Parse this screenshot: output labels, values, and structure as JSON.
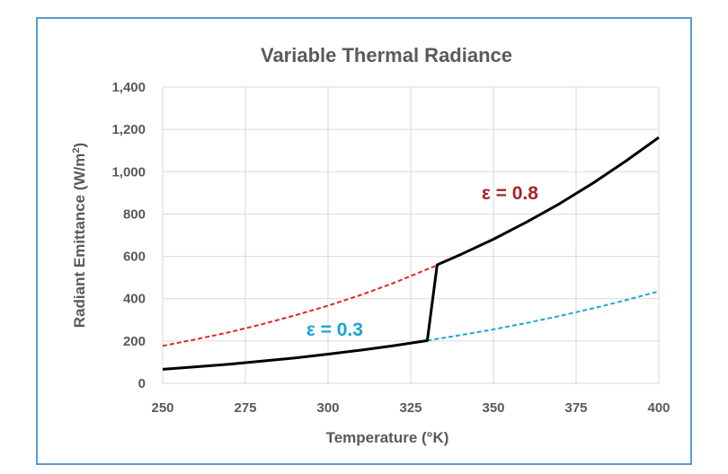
{
  "chart_data": {
    "type": "line",
    "title": "Variable Thermal Radiance",
    "xlabel": "Temperature (°K)",
    "ylabel_main": "Radiant Emittance (W/m",
    "ylabel_sup": "2",
    "ylabel_end": ")",
    "xlim": [
      250,
      400
    ],
    "ylim": [
      0,
      1400
    ],
    "xticks": [
      250,
      275,
      300,
      325,
      350,
      375,
      400
    ],
    "yticks": [
      0,
      200,
      400,
      600,
      800,
      1000,
      1200,
      1400
    ],
    "ytick_labels": [
      "0",
      "200",
      "400",
      "600",
      "800",
      "1,000",
      "1,200",
      "1,400"
    ],
    "grid": true,
    "colors": {
      "emissivity_high": "#e0262b",
      "emissivity_low": "#1fa8d8",
      "actual": "#000000",
      "annotation_high": "#a5242a",
      "annotation_low": "#1aa3d6",
      "frame": "#5b9bd5",
      "grid": "#d9d9d9"
    },
    "series": [
      {
        "style": "dashed",
        "color": "#e0262b",
        "x": [
          250,
          260,
          270,
          280,
          290,
          300,
          310,
          320,
          330,
          333
        ],
        "y": [
          177,
          208,
          241,
          279,
          321,
          367,
          418,
          475,
          539,
          558
        ]
      },
      {
        "style": "dashed",
        "color": "#1fa8d8",
        "x": [
          330,
          340,
          350,
          360,
          370,
          380,
          390,
          400
        ],
        "y": [
          202,
          228,
          255,
          285,
          318,
          354,
          393,
          435
        ]
      },
      {
        "style": "solid",
        "color": "#000000",
        "x": [
          250,
          260,
          270,
          280,
          290,
          300,
          310,
          320,
          330,
          333,
          340,
          350,
          360,
          370,
          380,
          390,
          400
        ],
        "y": [
          66,
          78,
          90,
          105,
          120,
          138,
          157,
          178,
          202,
          560,
          608,
          681,
          762,
          849,
          945,
          1050,
          1162
        ]
      }
    ],
    "annotations": [
      {
        "text": "ε = 0.8",
        "x": 355,
        "y": 870,
        "color": "#a5242a"
      },
      {
        "text": "ε = 0.3",
        "x": 302,
        "y": 225,
        "color": "#1aa3d6"
      }
    ]
  }
}
